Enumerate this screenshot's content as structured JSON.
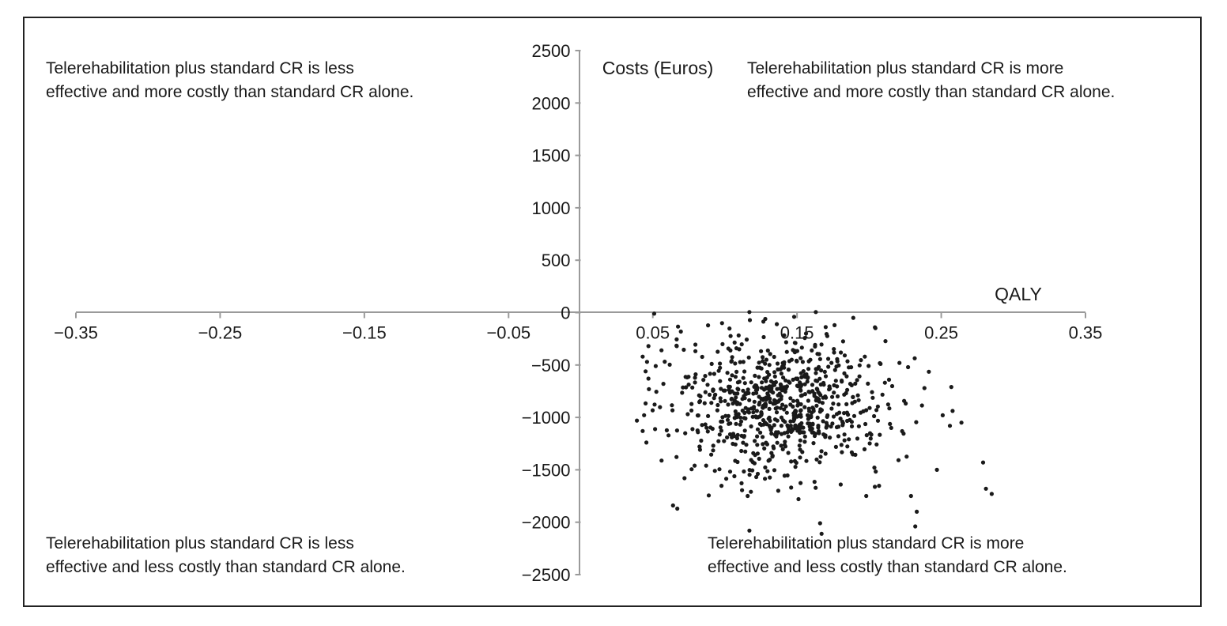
{
  "quadrant_notes": {
    "top_left": [
      "Telerehabilitation plus standard CR is less",
      "effective and more costly than standard CR alone."
    ],
    "top_right": [
      "Telerehabilitation plus standard CR is more",
      "effective and more costly than standard CR alone."
    ],
    "bottom_left": [
      "Telerehabilitation plus standard CR is less",
      "effective and less costly than standard CR alone."
    ],
    "bottom_right": [
      "Telerehabilitation plus standard CR is more",
      "effective and less costly than standard CR alone."
    ]
  },
  "colors": {
    "points": "#1a1a1a",
    "axes": "#9a9a9a",
    "border": "#222222"
  },
  "chart_data": {
    "type": "scatter",
    "xlabel": "QALY",
    "ylabel": "Costs (Euros)",
    "xlim": [
      -0.35,
      0.35
    ],
    "ylim": [
      -2500,
      2500
    ],
    "x_ticks": [
      -0.35,
      -0.25,
      -0.15,
      -0.05,
      0.05,
      0.15,
      0.25,
      0.35
    ],
    "x_tick_labels": [
      "−0.35",
      "−0.25",
      "−0.15",
      "−0.05",
      "0.05",
      "0.15",
      "0.25",
      "0.35"
    ],
    "y_ticks": [
      2500,
      2000,
      1500,
      1000,
      500,
      0,
      -500,
      -1000,
      -1500,
      -2000,
      -2500
    ],
    "y_tick_labels": [
      "2500",
      "2000",
      "1500",
      "1000",
      "500",
      "0",
      "−500",
      "−1000",
      "−1500",
      "−2000",
      "−2500"
    ],
    "axes_cross_at_origin": true,
    "grid": false,
    "series": [
      {
        "points": [
          [
            0.051,
            -10
          ],
          [
            0.117,
            5
          ],
          [
            0.163,
            5
          ],
          [
            0.148,
            -40
          ],
          [
            0.128,
            -60
          ],
          [
            0.189,
            -50
          ],
          [
            0.098,
            -100
          ],
          [
            0.136,
            -110
          ],
          [
            0.176,
            -120
          ],
          [
            0.204,
            -140
          ],
          [
            0.047,
            -320
          ],
          [
            0.056,
            -360
          ],
          [
            0.043,
            -420
          ],
          [
            0.046,
            -470
          ],
          [
            0.052,
            -510
          ],
          [
            0.045,
            -560
          ],
          [
            0.047,
            -630
          ],
          [
            0.039,
            -1030
          ],
          [
            0.043,
            -1130
          ],
          [
            0.064,
            -1840
          ],
          [
            0.067,
            -1870
          ],
          [
            0.072,
            -1580
          ],
          [
            0.079,
            -1460
          ],
          [
            0.087,
            -1460
          ],
          [
            0.093,
            -1510
          ],
          [
            0.117,
            -2080
          ],
          [
            0.166,
            -2010
          ],
          [
            0.167,
            -2110
          ],
          [
            0.232,
            -2040
          ],
          [
            0.233,
            -1900
          ],
          [
            0.229,
            -1750
          ],
          [
            0.279,
            -1430
          ],
          [
            0.281,
            -1680
          ],
          [
            0.285,
            -1730
          ],
          [
            0.247,
            -1500
          ],
          [
            0.256,
            -1080
          ],
          [
            0.264,
            -1050
          ],
          [
            0.251,
            -980
          ],
          [
            0.257,
            -710
          ],
          [
            0.227,
            -520
          ],
          [
            0.221,
            -480
          ],
          [
            0.197,
            -420
          ],
          [
            0.108,
            -340
          ],
          [
            0.151,
            -1780
          ],
          [
            0.137,
            -1700
          ],
          [
            0.118,
            -1710
          ],
          [
            0.198,
            -1750
          ]
        ],
        "generated_cloud": {
          "count": 760,
          "x_mean": 0.138,
          "x_sd": 0.038,
          "y_mean": -880,
          "y_sd": 330,
          "seed": 7
        }
      }
    ]
  }
}
